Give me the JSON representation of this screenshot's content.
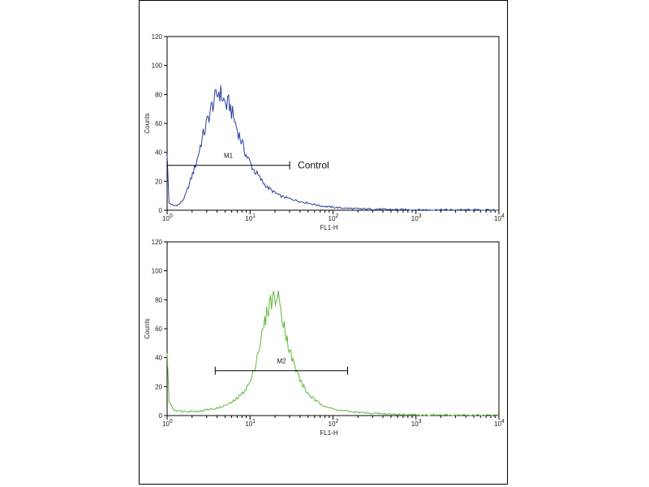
{
  "chart_data": [
    {
      "type": "histogram",
      "xlabel": "FL1-H",
      "ylabel": "Counts",
      "xscale": "log",
      "xlim": [
        1,
        10000
      ],
      "ylim": [
        0,
        120
      ],
      "yticks": [
        0,
        20,
        40,
        60,
        80,
        100,
        120
      ],
      "xticks": [
        {
          "base": "10",
          "exp": "0"
        },
        {
          "base": "10",
          "exp": "1"
        },
        {
          "base": "10",
          "exp": "2"
        },
        {
          "base": "10",
          "exp": "3"
        },
        {
          "base": "10",
          "exp": "4"
        }
      ],
      "color": "#2b3f9c",
      "series": [
        {
          "x": [
            1,
            1.05,
            1.2,
            1.4,
            1.6,
            1.8,
            2,
            2.3,
            2.6,
            3,
            3.3,
            3.6,
            3.9,
            4.2,
            4.5,
            4.8,
            5.2,
            5.6,
            6,
            6.5,
            7,
            7.6,
            8.3,
            9,
            10,
            11,
            12.5,
            14,
            16,
            18,
            20,
            23,
            26,
            30,
            35,
            40,
            50,
            60,
            70,
            85,
            100,
            130,
            200,
            300,
            500,
            1000,
            3000,
            10000
          ],
          "y": [
            40,
            5,
            3,
            4,
            8,
            16,
            24,
            35,
            48,
            60,
            68,
            74,
            78,
            82,
            80,
            76,
            72,
            74,
            68,
            62,
            56,
            50,
            44,
            38,
            33,
            28,
            24,
            20,
            16,
            14,
            12,
            10,
            9,
            8,
            7,
            6,
            5,
            4,
            3,
            2.5,
            2,
            1.5,
            1,
            0.8,
            0.5,
            0.3,
            0.2,
            0.1
          ]
        }
      ],
      "marker": {
        "label": "M1",
        "x_start": 1,
        "x_end": 30,
        "y": 31
      },
      "annotation": "Control"
    },
    {
      "type": "histogram",
      "xlabel": "FL1-H",
      "ylabel": "Counts",
      "xscale": "log",
      "xlim": [
        1,
        10000
      ],
      "ylim": [
        0,
        120
      ],
      "yticks": [
        0,
        20,
        40,
        60,
        80,
        100,
        120
      ],
      "xticks": [
        {
          "base": "10",
          "exp": "0"
        },
        {
          "base": "10",
          "exp": "1"
        },
        {
          "base": "10",
          "exp": "2"
        },
        {
          "base": "10",
          "exp": "3"
        },
        {
          "base": "10",
          "exp": "4"
        }
      ],
      "color": "#5fb73b",
      "series": [
        {
          "x": [
            1,
            1.05,
            1.2,
            1.5,
            2,
            2.5,
            3,
            4,
            5,
            6,
            7,
            8,
            9,
            10,
            11,
            12,
            13.5,
            15,
            16.5,
            18,
            20,
            22,
            24,
            26,
            28,
            31,
            35,
            40,
            45,
            50,
            60,
            70,
            85,
            100,
            130,
            170,
            250,
            400,
            700,
            1000,
            2000,
            5000,
            10000
          ],
          "y": [
            45,
            10,
            4,
            3,
            3,
            3,
            4,
            5,
            7,
            9,
            12,
            15,
            19,
            23,
            30,
            40,
            52,
            64,
            74,
            80,
            82,
            80,
            72,
            62,
            52,
            42,
            33,
            25,
            19,
            15,
            11,
            8,
            6,
            4.5,
            3.5,
            2.5,
            1.8,
            1.2,
            0.8,
            0.5,
            0.3,
            0.2,
            0.1
          ]
        }
      ],
      "marker": {
        "label": "M2",
        "x_start": 3.8,
        "x_end": 150,
        "y": 31
      },
      "annotation": ""
    }
  ]
}
